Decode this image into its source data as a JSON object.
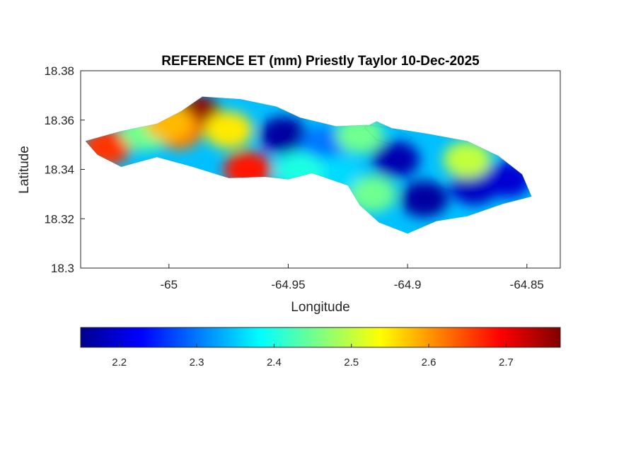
{
  "chart_data": {
    "type": "heatmap",
    "title": "REFERENCE ET (mm) Priestly Taylor 10-Dec-2025",
    "xlabel": "Longitude",
    "ylabel": "Latitude",
    "xlim": [
      -65.037,
      -64.836
    ],
    "ylim": [
      18.3,
      18.38
    ],
    "xticks": [
      -65,
      -64.95,
      -64.9,
      -64.85
    ],
    "xtick_labels": [
      "-65",
      "-64.95",
      "-64.9",
      "-64.85"
    ],
    "yticks": [
      18.3,
      18.32,
      18.34,
      18.36,
      18.38
    ],
    "ytick_labels": [
      "18.3",
      "18.32",
      "18.34",
      "18.36",
      "18.38"
    ],
    "colormap": "jet",
    "clim": [
      2.15,
      2.77
    ],
    "colorbar": {
      "placement": "bottom",
      "ticks": [
        2.2,
        2.3,
        2.4,
        2.5,
        2.6,
        2.7
      ],
      "tick_labels": [
        "2.2",
        "2.3",
        "2.4",
        "2.5",
        "2.6",
        "2.7"
      ]
    },
    "island_outline_lonlat": [
      [
        -65.035,
        18.3515
      ],
      [
        -65.02,
        18.3555
      ],
      [
        -65.005,
        18.3585
      ],
      [
        -64.995,
        18.3635
      ],
      [
        -64.986,
        18.3695
      ],
      [
        -64.97,
        18.3685
      ],
      [
        -64.955,
        18.3655
      ],
      [
        -64.945,
        18.361
      ],
      [
        -64.93,
        18.3575
      ],
      [
        -64.917,
        18.358
      ],
      [
        -64.905,
        18.3565
      ],
      [
        -64.892,
        18.3545
      ],
      [
        -64.875,
        18.3515
      ],
      [
        -64.862,
        18.3455
      ],
      [
        -64.852,
        18.338
      ],
      [
        -64.848,
        18.329
      ],
      [
        -64.86,
        18.326
      ],
      [
        -64.875,
        18.321
      ],
      [
        -64.888,
        18.319
      ],
      [
        -64.9,
        18.314
      ],
      [
        -64.912,
        18.3185
      ],
      [
        -64.92,
        18.3255
      ],
      [
        -64.925,
        18.3335
      ],
      [
        -64.94,
        18.3385
      ],
      [
        -64.95,
        18.336
      ],
      [
        -64.96,
        18.337
      ],
      [
        -64.975,
        18.3365
      ],
      [
        -64.99,
        18.341
      ],
      [
        -65.005,
        18.345
      ],
      [
        -65.02,
        18.341
      ],
      [
        -65.03,
        18.346
      ]
    ],
    "cay_outline_lonlat": [
      [
        -64.913,
        18.3595
      ],
      [
        -64.905,
        18.356
      ],
      [
        -64.898,
        18.353
      ],
      [
        -64.903,
        18.349
      ],
      [
        -64.913,
        18.352
      ],
      [
        -64.918,
        18.357
      ]
    ],
    "value_centers": [
      {
        "lon": -64.988,
        "lat": 18.3625,
        "value": 2.76
      },
      {
        "lon": -65.026,
        "lat": 18.349,
        "value": 2.66
      },
      {
        "lon": -64.967,
        "lat": 18.34,
        "value": 2.68
      },
      {
        "lon": -64.975,
        "lat": 18.356,
        "value": 2.55
      },
      {
        "lon": -64.996,
        "lat": 18.3555,
        "value": 2.62
      },
      {
        "lon": -65.01,
        "lat": 18.355,
        "value": 2.45
      },
      {
        "lon": -65.0,
        "lat": 18.359,
        "value": 2.58
      },
      {
        "lon": -64.952,
        "lat": 18.354,
        "value": 2.17
      },
      {
        "lon": -64.935,
        "lat": 18.35,
        "value": 2.3
      },
      {
        "lon": -64.92,
        "lat": 18.354,
        "value": 2.45
      },
      {
        "lon": -64.905,
        "lat": 18.344,
        "value": 2.18
      },
      {
        "lon": -64.893,
        "lat": 18.328,
        "value": 2.17
      },
      {
        "lon": -64.872,
        "lat": 18.333,
        "value": 2.19
      },
      {
        "lon": -64.875,
        "lat": 18.344,
        "value": 2.5
      },
      {
        "lon": -64.915,
        "lat": 18.33,
        "value": 2.45
      },
      {
        "lon": -64.93,
        "lat": 18.338,
        "value": 2.36
      },
      {
        "lon": -64.858,
        "lat": 18.336,
        "value": 2.2
      },
      {
        "lon": -64.945,
        "lat": 18.3395,
        "value": 2.4
      }
    ]
  }
}
